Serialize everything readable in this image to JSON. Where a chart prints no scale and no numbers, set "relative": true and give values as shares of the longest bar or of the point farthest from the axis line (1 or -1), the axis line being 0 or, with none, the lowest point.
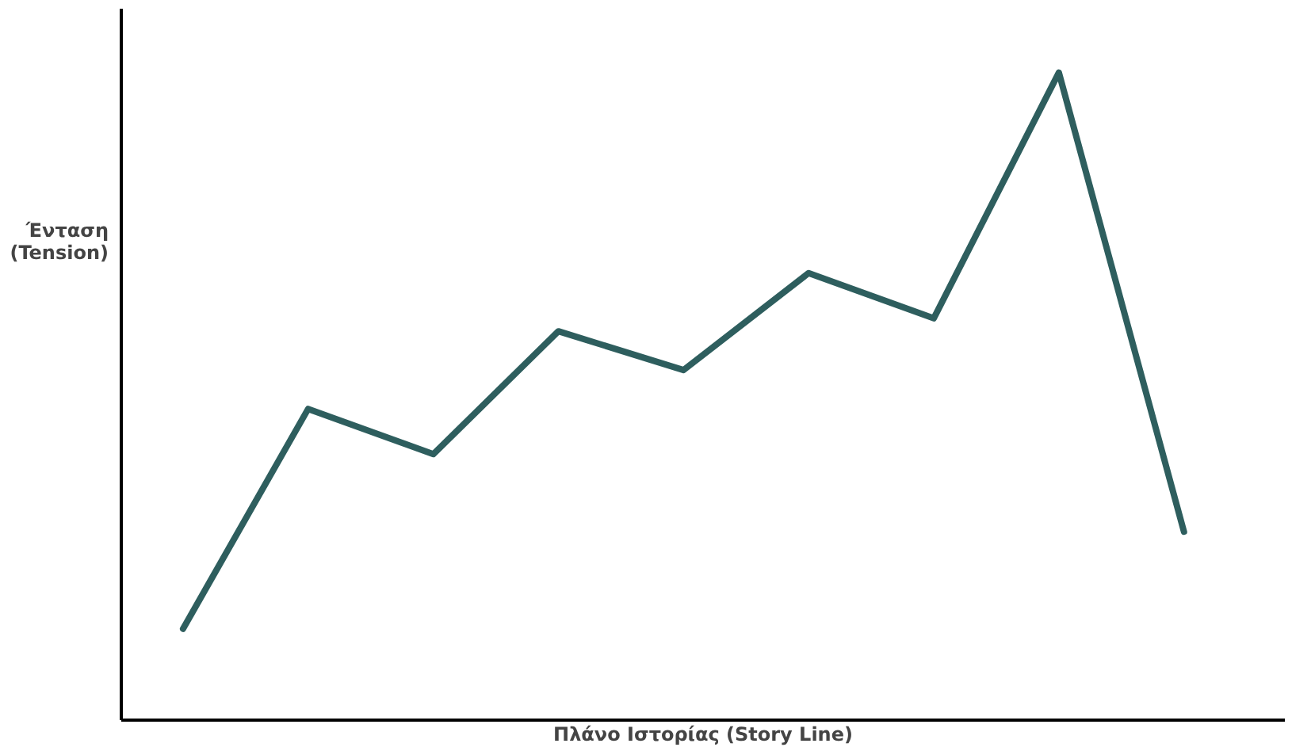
{
  "chart_data": {
    "type": "line",
    "relative": true,
    "xlabel": "Πλάνο Ιστορίας (Story Line)",
    "ylabel": "Ένταση (Tension)",
    "categories": [
      null,
      null,
      null,
      null,
      null,
      null,
      null,
      null,
      null
    ],
    "series": [
      {
        "color": "#2e5e5e",
        "values": [
          0.14,
          0.48,
          0.41,
          0.6,
          0.54,
          0.69,
          0.62,
          1,
          0.29
        ]
      }
    ],
    "grid": false,
    "legend": false,
    "marker": "none",
    "line_style": "solid",
    "tick_labels": false
  }
}
